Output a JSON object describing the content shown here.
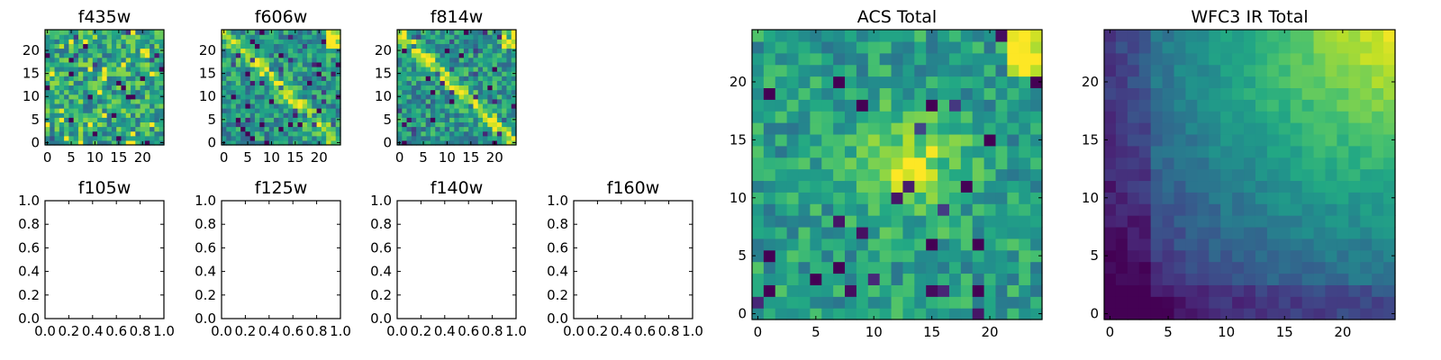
{
  "chart_data": [
    {
      "type": "heatmap",
      "title": "f435w",
      "grid_size": 25,
      "xlim": [
        0,
        24
      ],
      "ylim": [
        0,
        24
      ],
      "xticks": [
        "0",
        "5",
        "10",
        "15",
        "20"
      ],
      "yticks": [
        "0",
        "5",
        "10",
        "15",
        "20"
      ],
      "colormap": "viridis",
      "values": [],
      "values_note_seed": 11,
      "mode": "noise"
    },
    {
      "type": "heatmap",
      "title": "f606w",
      "grid_size": 25,
      "xlim": [
        0,
        24
      ],
      "ylim": [
        0,
        24
      ],
      "xticks": [
        "0",
        "5",
        "10",
        "15",
        "20"
      ],
      "yticks": [
        "0",
        "5",
        "10",
        "15",
        "20"
      ],
      "colormap": "viridis",
      "values": [],
      "values_note_seed": 23,
      "mode": "diag"
    },
    {
      "type": "heatmap",
      "title": "f814w",
      "grid_size": 25,
      "xlim": [
        0,
        24
      ],
      "ylim": [
        0,
        24
      ],
      "xticks": [
        "0",
        "5",
        "10",
        "15",
        "20"
      ],
      "yticks": [
        "0",
        "5",
        "10",
        "15",
        "20"
      ],
      "colormap": "viridis",
      "values": [],
      "values_note_seed": 37,
      "mode": "diag"
    },
    {
      "type": "heatmap",
      "title": "f105w",
      "empty": true,
      "xlim": [
        0,
        1
      ],
      "ylim": [
        0,
        1
      ],
      "xticks": [
        "0.0",
        "0.2",
        "0.4",
        "0.6",
        "0.8",
        "1.0"
      ],
      "yticks": [
        "0.0",
        "0.2",
        "0.4",
        "0.6",
        "0.8",
        "1.0"
      ]
    },
    {
      "type": "heatmap",
      "title": "f125w",
      "empty": true,
      "xlim": [
        0,
        1
      ],
      "ylim": [
        0,
        1
      ],
      "xticks": [
        "0.0",
        "0.2",
        "0.4",
        "0.6",
        "0.8",
        "1.0"
      ],
      "yticks": [
        "0.0",
        "0.2",
        "0.4",
        "0.6",
        "0.8",
        "1.0"
      ]
    },
    {
      "type": "heatmap",
      "title": "f140w",
      "empty": true,
      "xlim": [
        0,
        1
      ],
      "ylim": [
        0,
        1
      ],
      "xticks": [
        "0.0",
        "0.2",
        "0.4",
        "0.6",
        "0.8",
        "1.0"
      ],
      "yticks": [
        "0.0",
        "0.2",
        "0.4",
        "0.6",
        "0.8",
        "1.0"
      ]
    },
    {
      "type": "heatmap",
      "title": "f160w",
      "empty": true,
      "xlim": [
        0,
        1
      ],
      "ylim": [
        0,
        1
      ],
      "xticks": [
        "0.0",
        "0.2",
        "0.4",
        "0.6",
        "0.8",
        "1.0"
      ],
      "yticks": [
        "0.0",
        "0.2",
        "0.4",
        "0.6",
        "0.8",
        "1.0"
      ]
    },
    {
      "type": "heatmap",
      "title": "ACS Total",
      "grid_size": 25,
      "xlim": [
        0,
        24
      ],
      "ylim": [
        0,
        24
      ],
      "xticks": [
        "0",
        "5",
        "10",
        "15",
        "20"
      ],
      "yticks": [
        "0",
        "5",
        "10",
        "15",
        "20"
      ],
      "colormap": "viridis",
      "values_note_seed": 51,
      "mode": "acs"
    },
    {
      "type": "heatmap",
      "title": "WFC3 IR Total",
      "grid_size": 25,
      "xlim": [
        0,
        24
      ],
      "ylim": [
        0,
        24
      ],
      "xticks": [
        "0",
        "5",
        "10",
        "15",
        "20"
      ],
      "yticks": [
        "0",
        "5",
        "10",
        "15",
        "20"
      ],
      "colormap": "viridis",
      "values_note_seed": 73,
      "mode": "ir"
    }
  ],
  "colors": {
    "frame": "#000000",
    "background": "#ffffff"
  }
}
